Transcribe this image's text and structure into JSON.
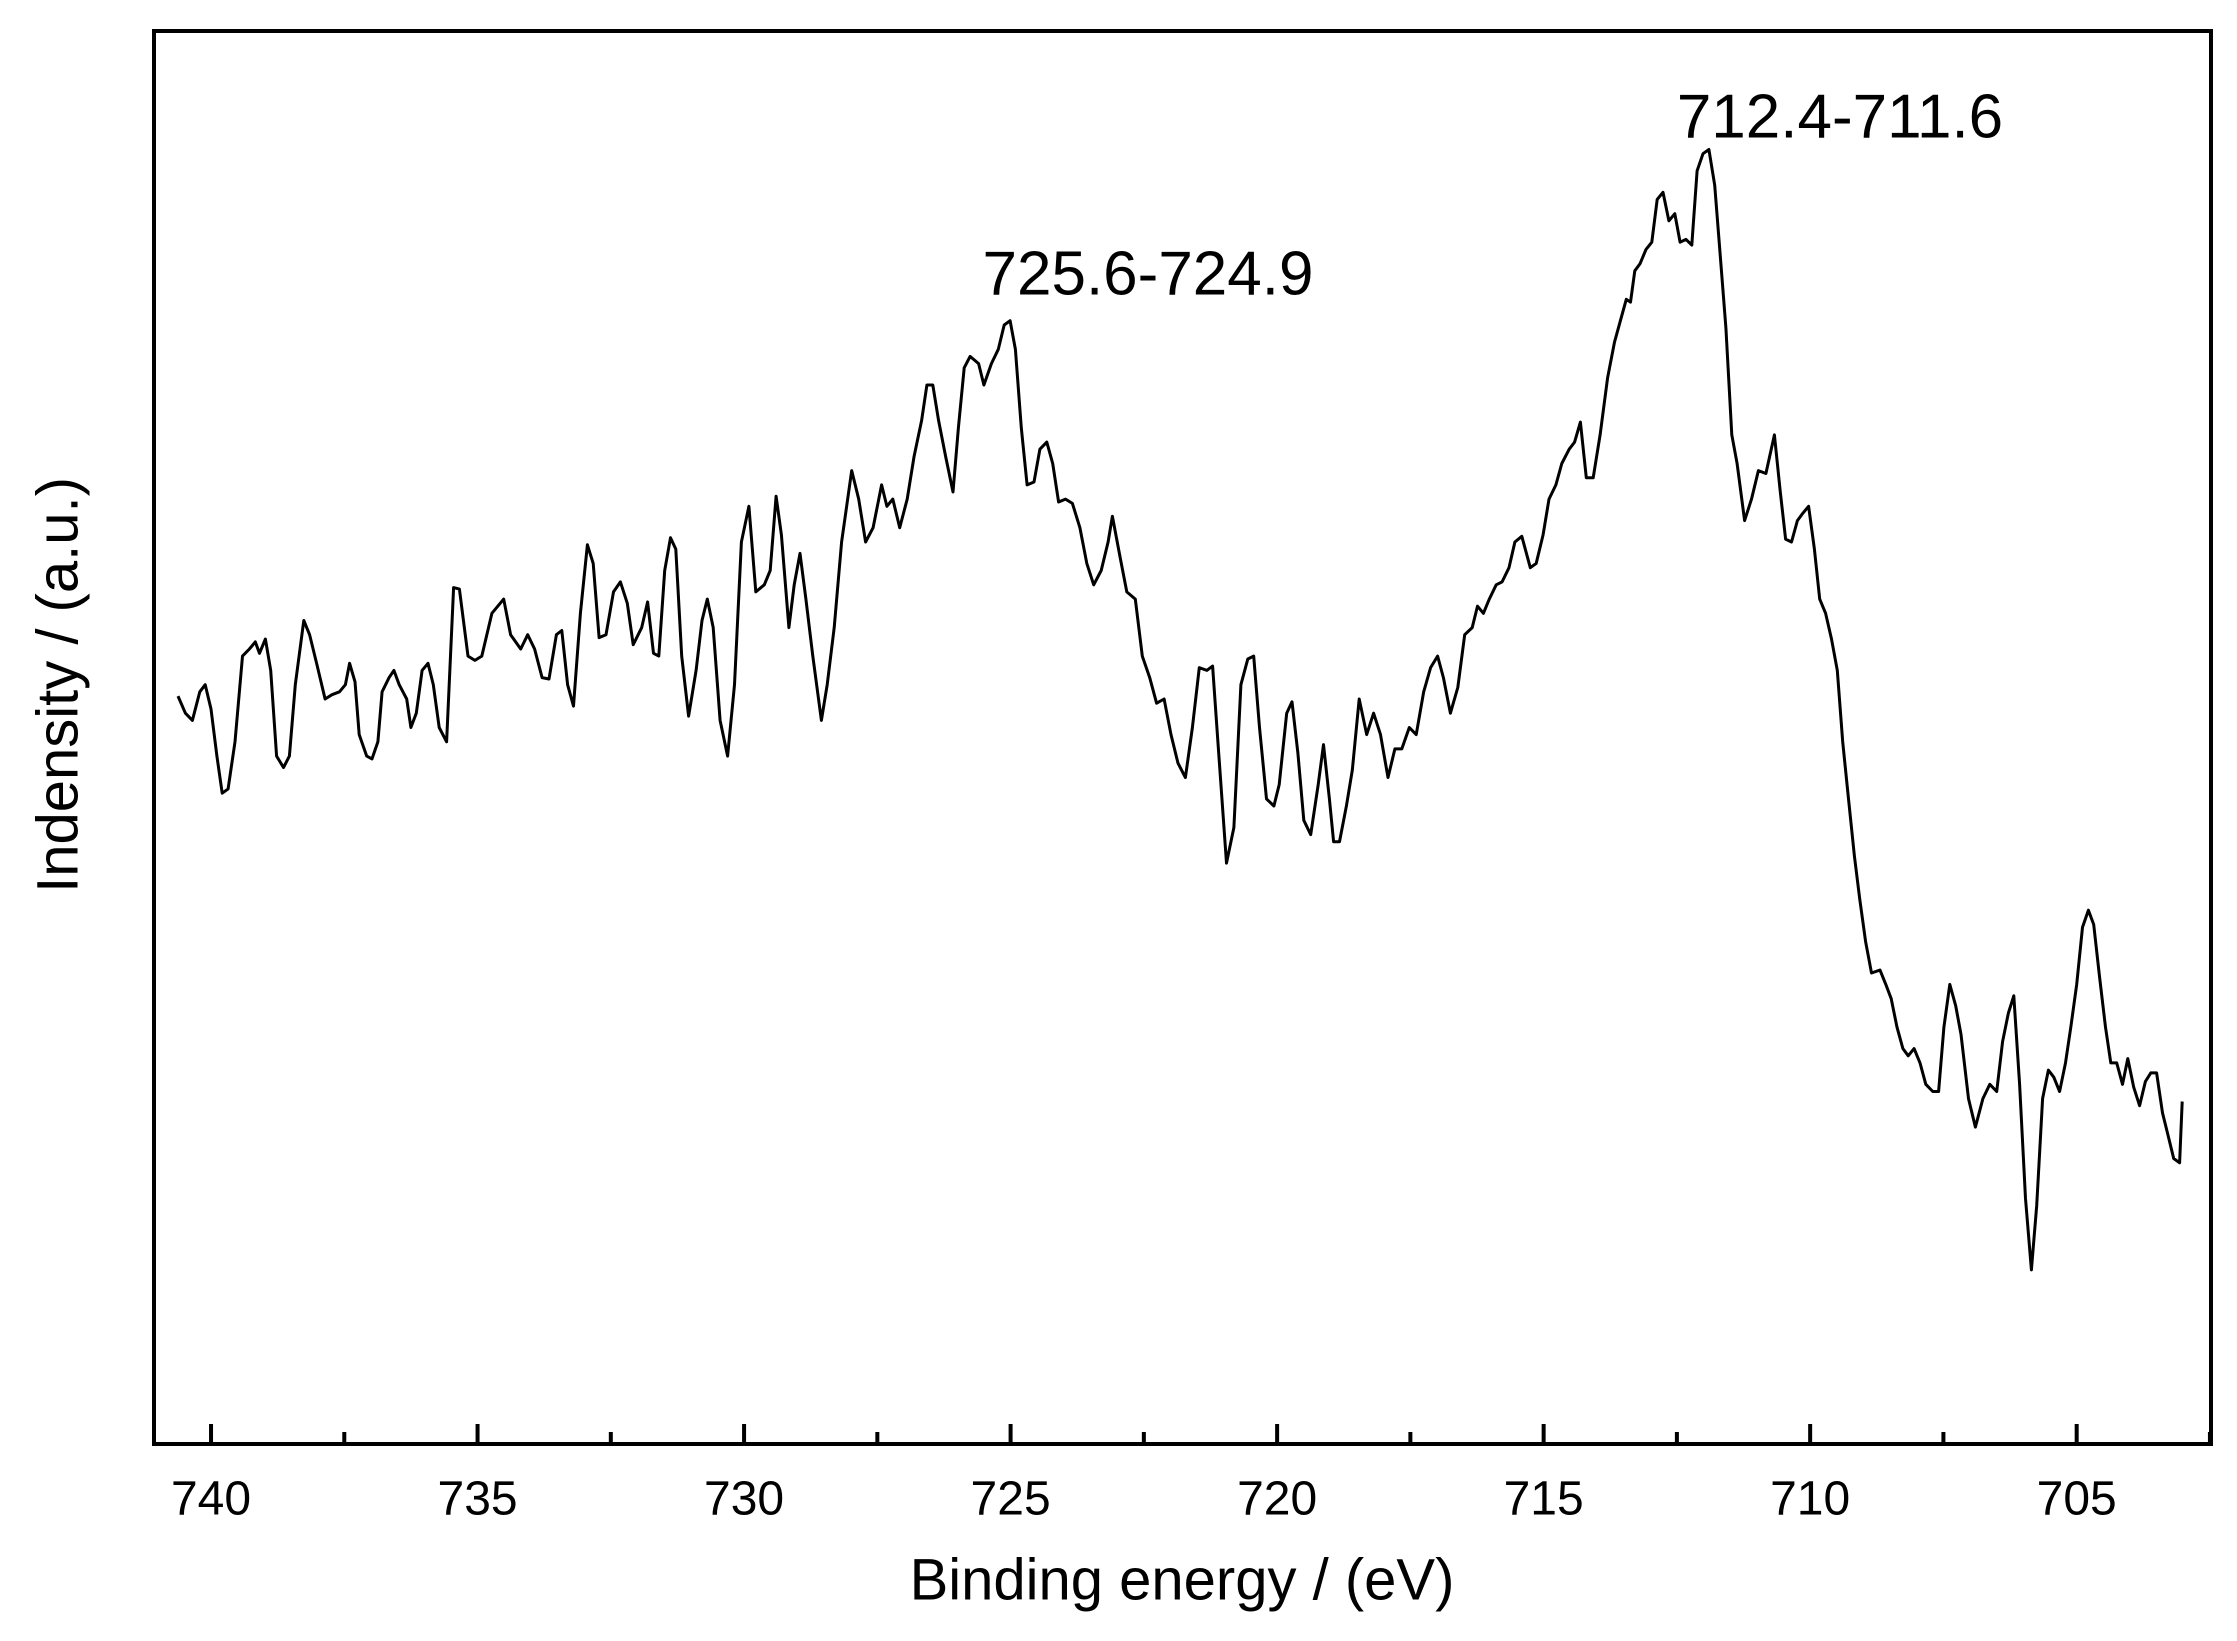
{
  "chart_data": {
    "type": "line",
    "xlabel": "Binding energy / (eV)",
    "ylabel": "Indensity / (a.u.)",
    "annotations": [
      {
        "text": "725.6-724.9"
      },
      {
        "text": "712.4-711.6"
      }
    ],
    "xlim": [
      741.07,
      702.48
    ],
    "ylim": [
      0,
      990
    ],
    "xticks": [
      740,
      735,
      730,
      725,
      720,
      715,
      710,
      705
    ],
    "xminor_ticks": [
      737.5,
      732.5,
      727.5,
      722.5,
      717.5,
      712.5,
      707.5,
      702.5
    ],
    "x": [
      740.62,
      740.48,
      740.35,
      740.21,
      740.11,
      740.0,
      739.89,
      739.79,
      739.68,
      739.55,
      739.41,
      739.28,
      739.17,
      739.09,
      738.98,
      738.88,
      738.77,
      738.64,
      738.53,
      738.42,
      738.26,
      738.15,
      738.02,
      737.86,
      737.73,
      737.59,
      737.48,
      737.4,
      737.3,
      737.22,
      737.08,
      736.98,
      736.87,
      736.79,
      736.66,
      736.57,
      736.47,
      736.33,
      736.25,
      736.15,
      736.04,
      735.93,
      735.83,
      735.72,
      735.58,
      735.45,
      735.34,
      735.18,
      735.05,
      734.92,
      734.73,
      734.51,
      734.38,
      734.19,
      734.06,
      733.93,
      733.79,
      733.66,
      733.52,
      733.42,
      733.31,
      733.2,
      733.07,
      732.94,
      732.83,
      732.72,
      732.59,
      732.45,
      732.32,
      732.19,
      732.08,
      731.92,
      731.81,
      731.7,
      731.6,
      731.49,
      731.38,
      731.28,
      731.17,
      731.04,
      730.9,
      730.79,
      730.69,
      730.58,
      730.45,
      730.31,
      730.18,
      730.05,
      729.91,
      729.78,
      729.62,
      729.51,
      729.4,
      729.3,
      729.16,
      729.06,
      728.95,
      728.84,
      728.71,
      728.55,
      728.44,
      728.31,
      728.17,
      727.98,
      727.85,
      727.72,
      727.58,
      727.42,
      727.32,
      727.21,
      727.08,
      726.94,
      726.81,
      726.67,
      726.57,
      726.46,
      726.35,
      726.22,
      726.08,
      725.98,
      725.87,
      725.76,
      725.6,
      725.5,
      725.36,
      725.23,
      725.12,
      725.01,
      724.91,
      724.8,
      724.69,
      724.56,
      724.45,
      724.32,
      724.21,
      724.1,
      723.97,
      723.84,
      723.7,
      723.57,
      723.44,
      723.3,
      723.17,
      723.09,
      722.95,
      722.82,
      722.66,
      722.53,
      722.39,
      722.26,
      722.12,
      721.99,
      721.86,
      721.72,
      721.59,
      721.46,
      721.32,
      721.21,
      721.11,
      720.95,
      720.81,
      720.68,
      720.55,
      720.44,
      720.33,
      720.2,
      720.06,
      719.96,
      719.82,
      719.72,
      719.61,
      719.5,
      719.37,
      719.23,
      719.13,
      719.02,
      718.94,
      718.83,
      718.7,
      718.59,
      718.46,
      718.32,
      718.19,
      718.06,
      717.92,
      717.79,
      717.66,
      717.52,
      717.39,
      717.25,
      717.12,
      716.99,
      716.88,
      716.75,
      716.61,
      716.48,
      716.34,
      716.24,
      716.13,
      716.02,
      715.89,
      715.78,
      715.65,
      715.54,
      715.41,
      715.25,
      715.14,
      715.01,
      714.9,
      714.77,
      714.66,
      714.52,
      714.42,
      714.31,
      714.2,
      714.07,
      713.94,
      713.8,
      713.67,
      713.56,
      713.45,
      713.37,
      713.29,
      713.19,
      713.08,
      712.97,
      712.87,
      712.76,
      712.65,
      712.54,
      712.44,
      712.33,
      712.22,
      712.12,
      712.01,
      711.9,
      711.79,
      711.69,
      711.58,
      711.47,
      711.37,
      711.23,
      711.1,
      710.97,
      710.83,
      710.67,
      710.56,
      710.46,
      710.35,
      710.24,
      710.14,
      710.03,
      709.92,
      709.82,
      709.71,
      709.6,
      709.49,
      709.39,
      709.28,
      709.17,
      709.07,
      708.96,
      708.85,
      708.69,
      708.58,
      708.48,
      708.37,
      708.26,
      708.16,
      708.05,
      707.94,
      707.83,
      707.7,
      707.59,
      707.49,
      707.38,
      707.27,
      707.17,
      707.03,
      706.9,
      706.76,
      706.63,
      706.5,
      706.39,
      706.28,
      706.18,
      706.07,
      705.96,
      705.85,
      705.75,
      705.64,
      705.53,
      705.43,
      705.32,
      705.21,
      705.11,
      705.0,
      704.89,
      704.78,
      704.68,
      704.57,
      704.46,
      704.36,
      704.25,
      704.14,
      704.04,
      703.93,
      703.82,
      703.71,
      703.61,
      703.5,
      703.39,
      703.29,
      703.18,
      703.07,
      703.02
    ],
    "series": [
      {
        "color": "#000000",
        "values": [
          524,
          512,
          507,
          527,
          532,
          515,
          482,
          456,
          459,
          492,
          552,
          557,
          562,
          554,
          564,
          542,
          482,
          474,
          482,
          532,
          577,
          567,
          547,
          522,
          525,
          527,
          532,
          547,
          534,
          497,
          482,
          480,
          492,
          527,
          537,
          542,
          532,
          522,
          502,
          512,
          542,
          547,
          532,
          502,
          492,
          600,
          599,
          552,
          549,
          552,
          582,
          592,
          567,
          557,
          567,
          557,
          537,
          536,
          567,
          570,
          532,
          517,
          582,
          630,
          617,
          565,
          567,
          597,
          604,
          589,
          560,
          572,
          590,
          554,
          552,
          612,
          635,
          627,
          552,
          510,
          542,
          577,
          592,
          572,
          507,
          482,
          532,
          632,
          657,
          597,
          602,
          612,
          664,
          637,
          572,
          602,
          624,
          592,
          552,
          507,
          532,
          572,
          632,
          682,
          662,
          632,
          642,
          672,
          657,
          662,
          642,
          662,
          692,
          717,
          742,
          742,
          717,
          692,
          667,
          712,
          754,
          762,
          757,
          742,
          757,
          767,
          784,
          787,
          767,
          712,
          672,
          674,
          697,
          702,
          687,
          660,
          662,
          659,
          642,
          617,
          602,
          612,
          632,
          650,
          622,
          597,
          592,
          552,
          537,
          519,
          522,
          497,
          477,
          467,
          502,
          544,
          542,
          545,
          492,
          407,
          432,
          532,
          550,
          552,
          502,
          452,
          447,
          462,
          512,
          520,
          484,
          437,
          427,
          462,
          490,
          452,
          422,
          422,
          447,
          472,
          522,
          497,
          512,
          497,
          467,
          487,
          487,
          502,
          497,
          527,
          544,
          552,
          537,
          512,
          530,
          567,
          572,
          587,
          582,
          592,
          602,
          604,
          614,
          632,
          636,
          614,
          617,
          637,
          662,
          672,
          687,
          697,
          702,
          716,
          677,
          677,
          707,
          747,
          772,
          787,
          802,
          800,
          822,
          827,
          837,
          842,
          872,
          877,
          857,
          862,
          842,
          844,
          840,
          892,
          904,
          907,
          882,
          834,
          782,
          707,
          687,
          647,
          662,
          682,
          680,
          707,
          667,
          634,
          632,
          647,
          652,
          657,
          627,
          592,
          582,
          564,
          542,
          492,
          452,
          412,
          382,
          352,
          330,
          332,
          322,
          312,
          292,
          277,
          272,
          277,
          267,
          252,
          247,
          247,
          292,
          322,
          307,
          287,
          242,
          222,
          242,
          252,
          247,
          282,
          302,
          314,
          252,
          172,
          122,
          167,
          242,
          262,
          257,
          247,
          267,
          292,
          322,
          362,
          374,
          364,
          327,
          292,
          267,
          267,
          252,
          270,
          250,
          237,
          254,
          260,
          260,
          232,
          217,
          200,
          197,
          240
        ]
      }
    ]
  }
}
